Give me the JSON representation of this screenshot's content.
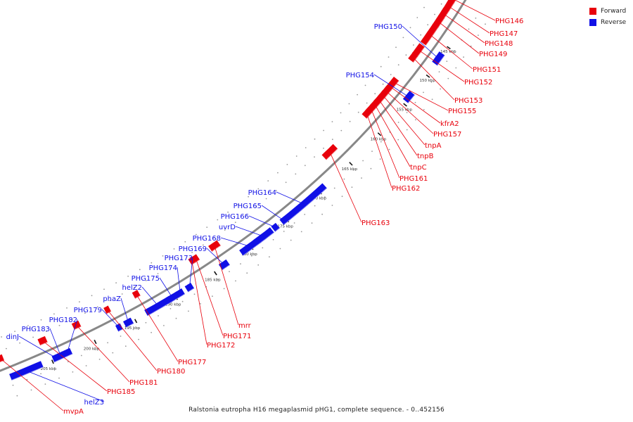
{
  "legend": {
    "forward_label": "Forward",
    "reverse_label": "Reverse",
    "forward_color": "#e8000b",
    "reverse_color": "#1010e6"
  },
  "caption": "Ralstonia eutropha H16 megaplasmid pHG1, complete sequence. - 0..452156",
  "scale_labels": [
    "145 kbp",
    "150 kbp",
    "155 kbp",
    "160 kbp",
    "165 kbp",
    "170 kbp",
    "175 kbp",
    "180 kbp",
    "185 kbp",
    "190 kbp",
    "195 kbp",
    "200 kbp",
    "205 kbp"
  ],
  "forward_genes": [
    "PHG146",
    "PHG147",
    "PHG148",
    "PHG149",
    "PHG151",
    "PHG152",
    "PHG153",
    "PHG155",
    "kfrA2",
    "PHG157",
    "tnpA",
    "tnpB",
    "tnpC",
    "PHG161",
    "PHG162",
    "PHG163",
    "mrr",
    "PHG171",
    "PHG172",
    "PHG177",
    "PHG180",
    "PHG181",
    "PHG185",
    "mvpA"
  ],
  "reverse_genes": [
    "PHG150",
    "PHG154",
    "PHG164",
    "PHG165",
    "PHG166",
    "uvrD",
    "PHG168",
    "PHG169",
    "PHG173",
    "PHG174",
    "PHG175",
    "helZ2",
    "phaZ",
    "PHG179",
    "PHG182",
    "PHG183",
    "dinJ",
    "helZ3"
  ]
}
